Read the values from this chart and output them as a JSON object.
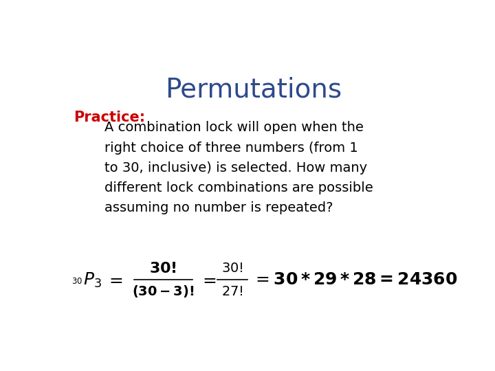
{
  "title": "Permutations",
  "title_color": "#2E4A8B",
  "title_fontsize": 28,
  "practice_label": "Practice:",
  "practice_color": "#CC0000",
  "practice_fontsize": 15,
  "body_text_lines": [
    "A combination lock will open when the",
    "right choice of three numbers (from 1",
    "to 30, inclusive) is selected. How many",
    "different lock combinations are possible",
    "assuming no number is repeated?"
  ],
  "body_color": "#000000",
  "body_fontsize": 14,
  "background_color": "#FFFFFF",
  "formula_color": "#000000"
}
